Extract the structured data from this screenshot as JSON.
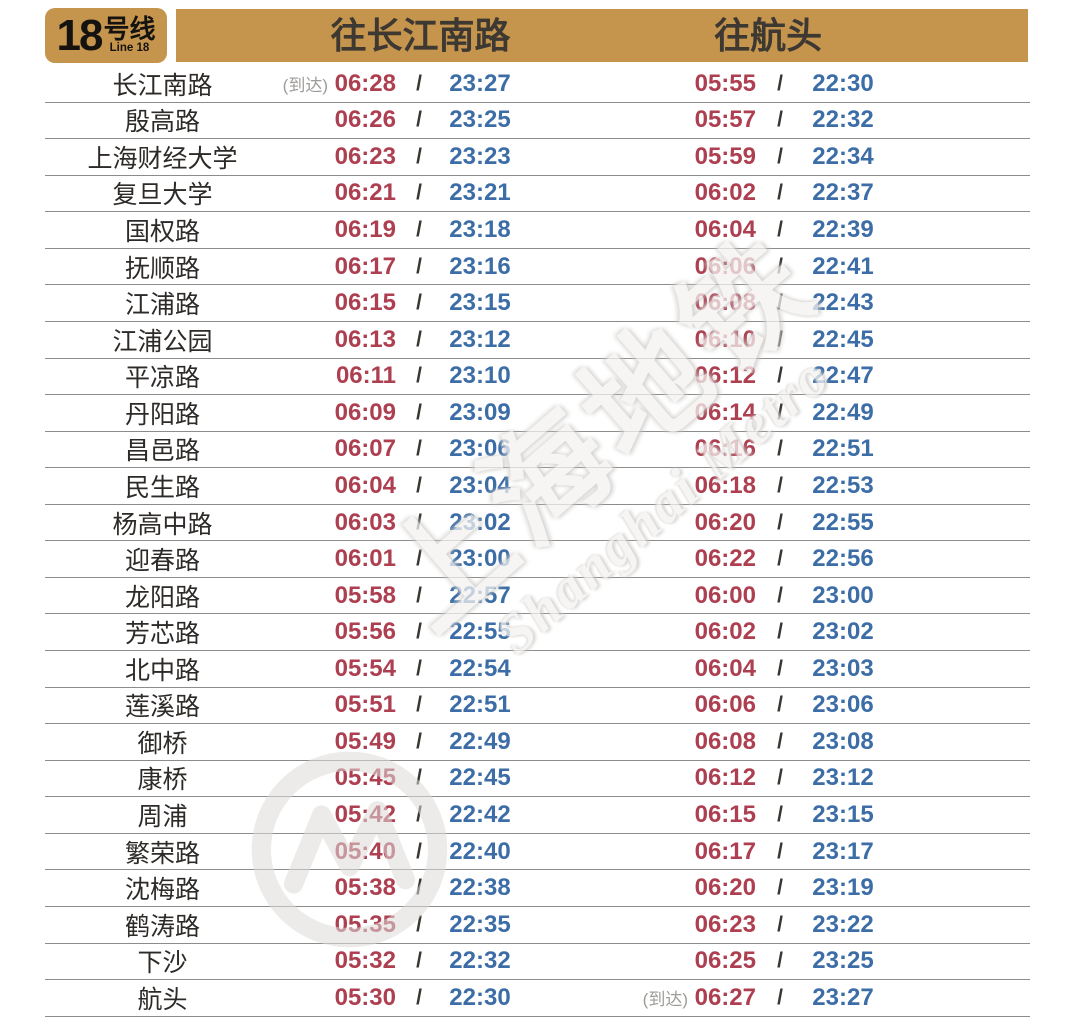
{
  "line_badge": {
    "number": "18",
    "suffix_cn": "号线",
    "subtitle_en": "Line 18"
  },
  "header": {
    "direction1": "往长江南路",
    "direction2": "往航头"
  },
  "arrival_label": "(到达)",
  "slash": "/",
  "watermark": {
    "cn": "上海地铁",
    "en": "Shanghai Metro"
  },
  "colors": {
    "gold": "#c5954e",
    "first_train_red": "#ad3f50",
    "last_train_blue": "#3c6da6"
  },
  "rows": [
    {
      "station": "长江南路",
      "d1_arrival": true,
      "d1_first": "06:28",
      "d1_last": "23:27",
      "d2_arrival": false,
      "d2_first": "05:55",
      "d2_last": "22:30"
    },
    {
      "station": "殷高路",
      "d1_arrival": false,
      "d1_first": "06:26",
      "d1_last": "23:25",
      "d2_arrival": false,
      "d2_first": "05:57",
      "d2_last": "22:32"
    },
    {
      "station": "上海财经大学",
      "d1_arrival": false,
      "d1_first": "06:23",
      "d1_last": "23:23",
      "d2_arrival": false,
      "d2_first": "05:59",
      "d2_last": "22:34"
    },
    {
      "station": "复旦大学",
      "d1_arrival": false,
      "d1_first": "06:21",
      "d1_last": "23:21",
      "d2_arrival": false,
      "d2_first": "06:02",
      "d2_last": "22:37"
    },
    {
      "station": "国权路",
      "d1_arrival": false,
      "d1_first": "06:19",
      "d1_last": "23:18",
      "d2_arrival": false,
      "d2_first": "06:04",
      "d2_last": "22:39"
    },
    {
      "station": "抚顺路",
      "d1_arrival": false,
      "d1_first": "06:17",
      "d1_last": "23:16",
      "d2_arrival": false,
      "d2_first": "06:06",
      "d2_last": "22:41"
    },
    {
      "station": "江浦路",
      "d1_arrival": false,
      "d1_first": "06:15",
      "d1_last": "23:15",
      "d2_arrival": false,
      "d2_first": "06:08",
      "d2_last": "22:43"
    },
    {
      "station": "江浦公园",
      "d1_arrival": false,
      "d1_first": "06:13",
      "d1_last": "23:12",
      "d2_arrival": false,
      "d2_first": "06:10",
      "d2_last": "22:45"
    },
    {
      "station": "平凉路",
      "d1_arrival": false,
      "d1_first": "06:11",
      "d1_last": "23:10",
      "d2_arrival": false,
      "d2_first": "06:12",
      "d2_last": "22:47"
    },
    {
      "station": "丹阳路",
      "d1_arrival": false,
      "d1_first": "06:09",
      "d1_last": "23:09",
      "d2_arrival": false,
      "d2_first": "06:14",
      "d2_last": "22:49"
    },
    {
      "station": "昌邑路",
      "d1_arrival": false,
      "d1_first": "06:07",
      "d1_last": "23:06",
      "d2_arrival": false,
      "d2_first": "06:16",
      "d2_last": "22:51"
    },
    {
      "station": "民生路",
      "d1_arrival": false,
      "d1_first": "06:04",
      "d1_last": "23:04",
      "d2_arrival": false,
      "d2_first": "06:18",
      "d2_last": "22:53"
    },
    {
      "station": "杨高中路",
      "d1_arrival": false,
      "d1_first": "06:03",
      "d1_last": "23:02",
      "d2_arrival": false,
      "d2_first": "06:20",
      "d2_last": "22:55"
    },
    {
      "station": "迎春路",
      "d1_arrival": false,
      "d1_first": "06:01",
      "d1_last": "23:00",
      "d2_arrival": false,
      "d2_first": "06:22",
      "d2_last": "22:56"
    },
    {
      "station": "龙阳路",
      "d1_arrival": false,
      "d1_first": "05:58",
      "d1_last": "22:57",
      "d2_arrival": false,
      "d2_first": "06:00",
      "d2_last": "23:00"
    },
    {
      "station": "芳芯路",
      "d1_arrival": false,
      "d1_first": "05:56",
      "d1_last": "22:55",
      "d2_arrival": false,
      "d2_first": "06:02",
      "d2_last": "23:02"
    },
    {
      "station": "北中路",
      "d1_arrival": false,
      "d1_first": "05:54",
      "d1_last": "22:54",
      "d2_arrival": false,
      "d2_first": "06:04",
      "d2_last": "23:03"
    },
    {
      "station": "莲溪路",
      "d1_arrival": false,
      "d1_first": "05:51",
      "d1_last": "22:51",
      "d2_arrival": false,
      "d2_first": "06:06",
      "d2_last": "23:06"
    },
    {
      "station": "御桥",
      "d1_arrival": false,
      "d1_first": "05:49",
      "d1_last": "22:49",
      "d2_arrival": false,
      "d2_first": "06:08",
      "d2_last": "23:08"
    },
    {
      "station": "康桥",
      "d1_arrival": false,
      "d1_first": "05:45",
      "d1_last": "22:45",
      "d2_arrival": false,
      "d2_first": "06:12",
      "d2_last": "23:12"
    },
    {
      "station": "周浦",
      "d1_arrival": false,
      "d1_first": "05:42",
      "d1_last": "22:42",
      "d2_arrival": false,
      "d2_first": "06:15",
      "d2_last": "23:15"
    },
    {
      "station": "繁荣路",
      "d1_arrival": false,
      "d1_first": "05:40",
      "d1_last": "22:40",
      "d2_arrival": false,
      "d2_first": "06:17",
      "d2_last": "23:17"
    },
    {
      "station": "沈梅路",
      "d1_arrival": false,
      "d1_first": "05:38",
      "d1_last": "22:38",
      "d2_arrival": false,
      "d2_first": "06:20",
      "d2_last": "23:19"
    },
    {
      "station": "鹤涛路",
      "d1_arrival": false,
      "d1_first": "05:35",
      "d1_last": "22:35",
      "d2_arrival": false,
      "d2_first": "06:23",
      "d2_last": "23:22"
    },
    {
      "station": "下沙",
      "d1_arrival": false,
      "d1_first": "05:32",
      "d1_last": "22:32",
      "d2_arrival": false,
      "d2_first": "06:25",
      "d2_last": "23:25"
    },
    {
      "station": "航头",
      "d1_arrival": false,
      "d1_first": "05:30",
      "d1_last": "22:30",
      "d2_arrival": true,
      "d2_first": "06:27",
      "d2_last": "23:27"
    }
  ]
}
